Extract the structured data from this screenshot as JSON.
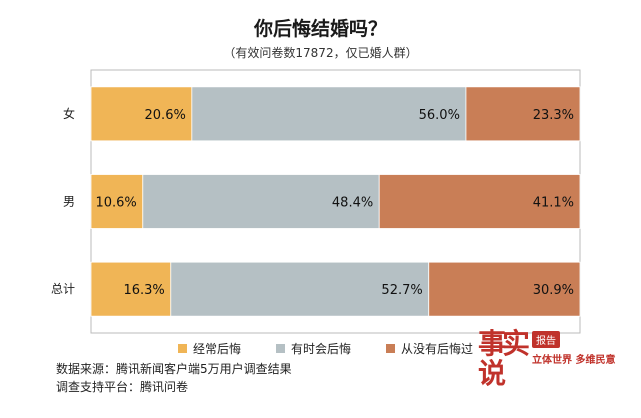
{
  "title": "你后悔结婚吗？",
  "subtitle": "（有效问卷数17872，仅已婚人群）",
  "colors": {
    "often": "#f0b556",
    "sometimes": "#b5c0c4",
    "never": "#c97e56"
  },
  "chart_data": {
    "type": "bar",
    "orientation": "horizontal",
    "stacked": true,
    "categories": [
      "女",
      "男",
      "总计"
    ],
    "series": [
      {
        "name": "经常后悔",
        "values": [
          20.6,
          10.6,
          16.3
        ],
        "color": "#f0b556"
      },
      {
        "name": "有时会后悔",
        "values": [
          56.0,
          48.4,
          52.7
        ],
        "color": "#b5c0c4"
      },
      {
        "name": "从没有后悔过",
        "values": [
          23.3,
          41.1,
          30.9
        ],
        "color": "#c97e56"
      }
    ],
    "data_labels": [
      [
        "20.6%",
        "56.0%",
        "23.3%"
      ],
      [
        "10.6%",
        "48.4%",
        "41.1%"
      ],
      [
        "16.3%",
        "52.7%",
        "30.9%"
      ]
    ],
    "xlim": [
      0,
      100
    ],
    "legend": "bottom"
  },
  "legend": [
    "经常后悔",
    "有时会后悔",
    "从没有后悔过"
  ],
  "source": {
    "line1": "数据来源：腾讯新闻客户端5万用户调查结果",
    "line2": "调查支持平台：腾讯问卷"
  },
  "logo": {
    "mark": "事实说",
    "badge": "报告",
    "tagline": "立体世界 多维民意"
  }
}
